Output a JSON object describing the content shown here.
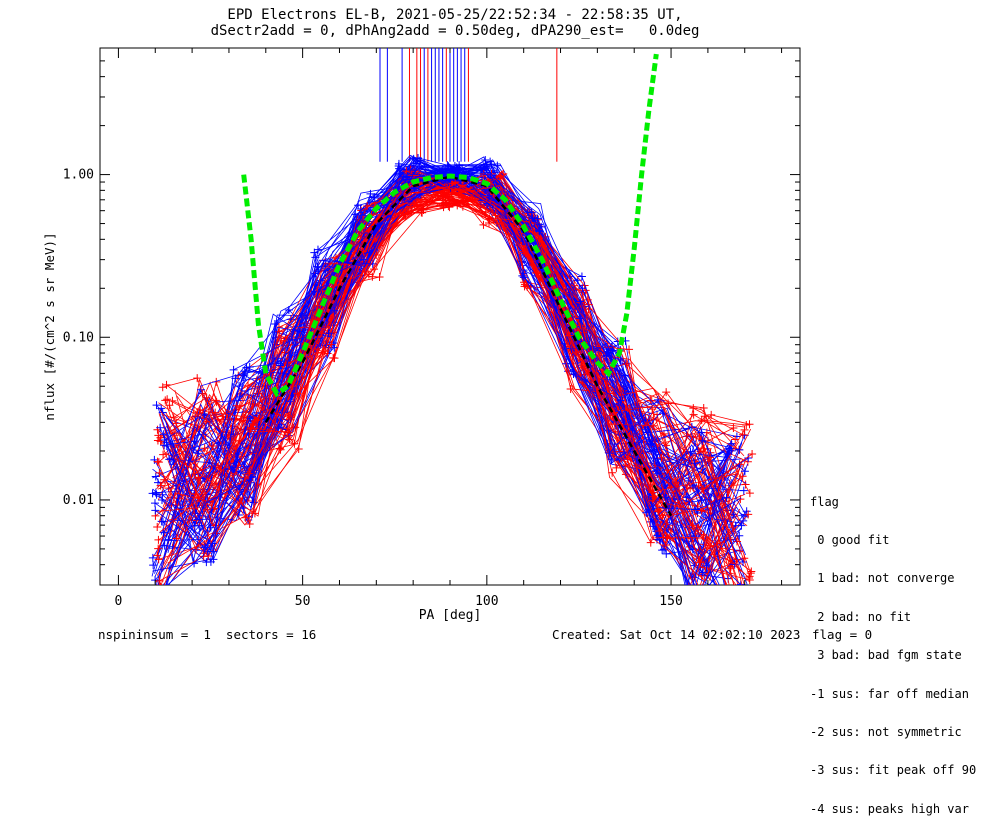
{
  "title_line1": "EPD Electrons EL-B, 2021-05-25/22:52:34 - 22:58:35 UT,",
  "title_line2": "dSectr2add = 0, dPhAng2add = 0.50deg, dPA290_est=   0.0deg",
  "footer_left": "nspininsum =  1  sectors = 16",
  "footer_right": "Created: Sat Oct 14 02:02:10 2023",
  "footer_flag": "flag = 0",
  "legend": {
    "title": "flag",
    "items": [
      " 0 good fit",
      " 1 bad: not converge",
      " 2 bad: no fit",
      " 3 bad: bad fgm state",
      "-1 sus: far off median",
      "-2 sus: not symmetric",
      "-3 sus: fit peak off 90",
      "-4 sus: peaks high var"
    ]
  },
  "colors": {
    "series_a": "#0000ff",
    "series_b": "#ff0000",
    "fit": "#00ee00",
    "median": "#000000"
  },
  "chart_data": {
    "type": "line",
    "xlabel": "PA [deg]",
    "ylabel": "nflux [#/(cm^2 s sr MeV)]",
    "xlim": [
      -5,
      185
    ],
    "ylim": [
      0.003,
      6.0
    ],
    "yscale": "log",
    "xticks": [
      0,
      50,
      100,
      150
    ],
    "yticks": [
      0.01,
      0.1,
      1.0
    ],
    "ytick_labels": [
      "0.01",
      "0.10",
      "1.00"
    ],
    "series": [
      {
        "color": "blue",
        "x": [
          12,
          23,
          34,
          45,
          56,
          67,
          79,
          90,
          101,
          112,
          124,
          135,
          146,
          157,
          168
        ],
        "y": [
          0.009,
          0.014,
          0.022,
          0.06,
          0.18,
          0.45,
          0.92,
          0.98,
          0.9,
          0.4,
          0.12,
          0.04,
          0.014,
          0.008,
          0.006
        ]
      },
      {
        "color": "red",
        "x": [
          13,
          24,
          35,
          46,
          57,
          68,
          80,
          91,
          102,
          113,
          125,
          136,
          147,
          158,
          169
        ],
        "y": [
          0.012,
          0.016,
          0.02,
          0.05,
          0.15,
          0.4,
          0.8,
          0.75,
          0.7,
          0.35,
          0.1,
          0.035,
          0.016,
          0.01,
          0.007
        ]
      }
    ],
    "fit_curve": {
      "x": [
        34,
        36,
        38,
        40,
        43,
        46,
        50,
        55,
        60,
        65,
        70,
        75,
        80,
        85,
        90,
        95,
        100,
        105,
        110,
        115,
        120,
        125,
        130,
        133,
        136,
        138,
        140,
        142,
        144,
        146
      ],
      "y": [
        1.0,
        0.4,
        0.12,
        0.06,
        0.045,
        0.05,
        0.08,
        0.15,
        0.28,
        0.45,
        0.62,
        0.78,
        0.9,
        0.96,
        0.98,
        0.96,
        0.88,
        0.7,
        0.48,
        0.3,
        0.17,
        0.1,
        0.07,
        0.06,
        0.08,
        0.14,
        0.35,
        1.0,
        2.5,
        5.5
      ]
    },
    "median_curve": {
      "x": [
        40,
        50,
        60,
        70,
        80,
        90,
        100,
        110,
        120,
        130,
        140,
        150
      ],
      "y": [
        0.03,
        0.07,
        0.2,
        0.5,
        0.85,
        0.97,
        0.85,
        0.45,
        0.15,
        0.05,
        0.02,
        0.008
      ]
    },
    "spikes": {
      "x": [
        71,
        73,
        77,
        79,
        81,
        82,
        83,
        84,
        85,
        86,
        87,
        88,
        89,
        90,
        91,
        92,
        93,
        94,
        95,
        119
      ],
      "colors": [
        "blue",
        "blue",
        "blue",
        "red",
        "red",
        "red",
        "blue",
        "red",
        "blue",
        "blue",
        "blue",
        "blue",
        "red",
        "blue",
        "blue",
        "blue",
        "blue",
        "blue",
        "red",
        "red"
      ]
    }
  }
}
